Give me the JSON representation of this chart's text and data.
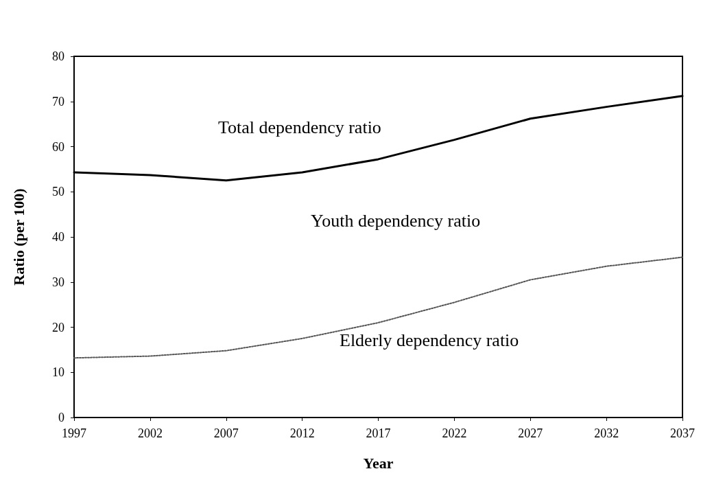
{
  "chart_data": {
    "type": "line",
    "xlabel": "Year",
    "ylabel": "Ratio (per 100)",
    "x": [
      1997,
      2002,
      2007,
      2012,
      2017,
      2022,
      2027,
      2032,
      2037
    ],
    "series": [
      {
        "name": "Total dependency ratio",
        "color": "#000000",
        "line_style": "solid",
        "values": [
          54.3,
          53.7,
          52.5,
          54.3,
          57.2,
          61.5,
          66.2,
          68.8,
          71.2
        ]
      },
      {
        "name": "Elderly dependency ratio",
        "color": "#555555",
        "line_style": "dotted",
        "values": [
          13.2,
          13.6,
          14.8,
          17.5,
          21,
          25.5,
          30.5,
          33.5,
          35.5
        ]
      }
    ],
    "annotations": [
      "Youth dependency ratio"
    ],
    "xlim": [
      1997,
      2037
    ],
    "xticks": [
      1997,
      2002,
      2007,
      2012,
      2017,
      2022,
      2027,
      2032,
      2037
    ],
    "ylim": [
      0,
      80
    ],
    "yticks": [
      0,
      10,
      20,
      30,
      40,
      50,
      60,
      70,
      80
    ],
    "grid": false,
    "legend": false,
    "marker": "none"
  }
}
